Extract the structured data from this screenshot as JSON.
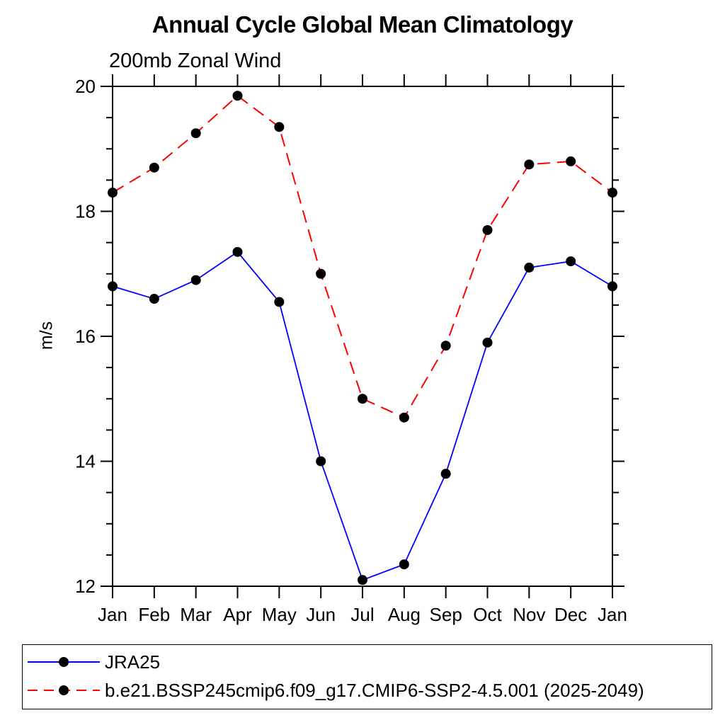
{
  "chart_data": {
    "type": "line",
    "title": "Annual Cycle Global Mean Climatology",
    "subtitle": "200mb Zonal Wind",
    "ylabel": "m/s",
    "xlabel": "",
    "categories": [
      "Jan",
      "Feb",
      "Mar",
      "Apr",
      "May",
      "Jun",
      "Jul",
      "Aug",
      "Sep",
      "Oct",
      "Nov",
      "Dec",
      "Jan"
    ],
    "ylim": [
      12,
      20
    ],
    "y_major_ticks": [
      12,
      14,
      16,
      18,
      20
    ],
    "y_minor_step": 0.5,
    "grid": "off",
    "legend_position": "bottom-left-box",
    "series": [
      {
        "name": "JRA25",
        "color": "#0000ff",
        "line_style": "solid",
        "marker": "filled-black-circle",
        "values": [
          16.8,
          16.6,
          16.9,
          17.35,
          16.55,
          14.0,
          12.1,
          12.35,
          13.8,
          15.9,
          17.1,
          17.2,
          16.8
        ]
      },
      {
        "name": "b.e21.BSSP245cmip6.f09_g17.CMIP6-SSP2-4.5.001 (2025-2049)",
        "color": "#ff0000",
        "line_style": "dashed",
        "marker": "filled-black-circle",
        "values": [
          18.3,
          18.7,
          19.25,
          19.85,
          19.35,
          17.0,
          15.0,
          14.7,
          15.85,
          17.7,
          18.75,
          18.8,
          18.3
        ]
      }
    ],
    "axis_color": "#000000"
  }
}
